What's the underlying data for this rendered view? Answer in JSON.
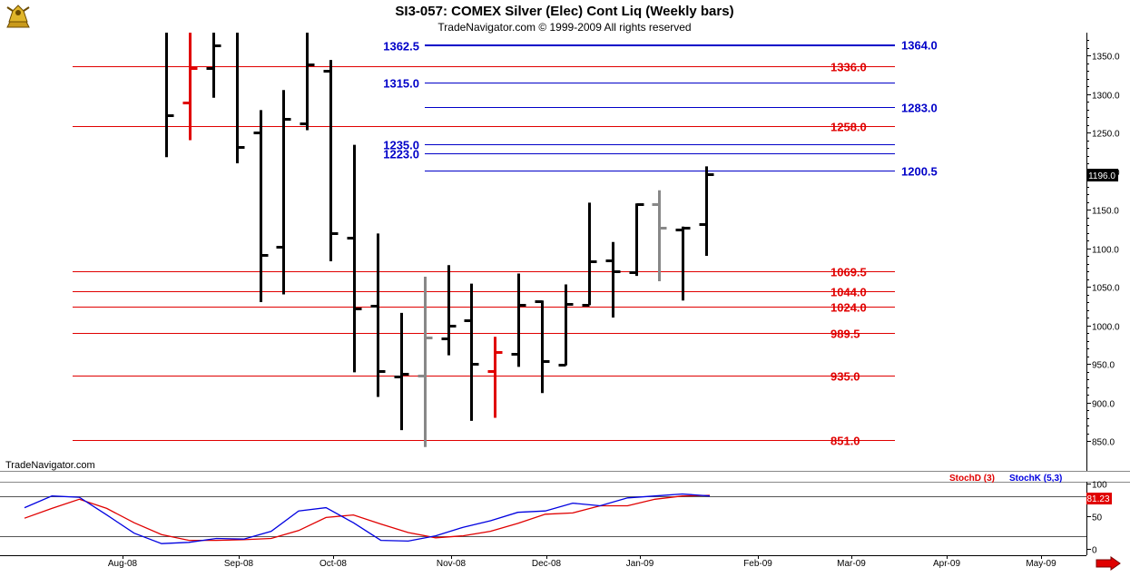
{
  "header": {
    "title": "SI3-057:  COMEX Silver (Elec) Cont Liq  (Weekly bars)",
    "copyright": "TradeNavigator.com © 1999-2009 All rights reserved"
  },
  "brand_label": "TradeNavigator.com",
  "last_price_label": "1196.0",
  "stoch_last_label": "81.23",
  "legend": {
    "stoch_d": "StochD (3)",
    "stoch_k": "StochK (5,3)"
  },
  "icons": {
    "logo": "gold-bull-logo-icon",
    "scroll": "right-arrow-icon"
  },
  "colors": {
    "price_bar": "#000000",
    "down_bar": "#e00000",
    "neutral_bar": "#888888",
    "support_line": "#e00000",
    "resistance_line": "#0000c8",
    "stoch_d": "#e00000",
    "stoch_k": "#0000e0"
  },
  "chart_data": [
    {
      "type": "ohlc",
      "title": "SI3-057:  COMEX Silver (Elec) Cont Liq  (Weekly bars)",
      "x_tick_labels": [
        "Aug-08",
        "Sep-08",
        "Oct-08",
        "Nov-08",
        "Dec-08",
        "Jan-09",
        "Feb-09",
        "Mar-09",
        "Apr-09",
        "May-09"
      ],
      "y_tick_labels": [
        "850.0",
        "900.0",
        "950.0",
        "1000.0",
        "1050.0",
        "1100.0",
        "1150.0",
        "1200.0",
        "1250.0",
        "1300.0",
        "1350.0"
      ],
      "ylim": [
        835,
        1385
      ],
      "grid": false,
      "bars": [
        {
          "week": "2008-07-28",
          "high": 1385,
          "low": 1218,
          "close": 1272,
          "color": "black"
        },
        {
          "week": "2008-08-04",
          "high": 1385,
          "low": 1240,
          "open": 1289,
          "close": 1333,
          "color": "red"
        },
        {
          "week": "2008-08-11",
          "high": 1385,
          "low": 1295,
          "open": 1334,
          "close": 1363,
          "color": "black"
        },
        {
          "week": "2008-08-18",
          "high": 1385,
          "low": 1210,
          "close": 1231,
          "color": "black"
        },
        {
          "week": "2008-08-25",
          "high": 1279,
          "low": 1030,
          "open": 1250,
          "close": 1091,
          "color": "black"
        },
        {
          "week": "2008-09-01",
          "high": 1305,
          "low": 1040,
          "open": 1102,
          "close": 1268,
          "color": "black"
        },
        {
          "week": "2008-09-08",
          "high": 1385,
          "low": 1253,
          "open": 1262,
          "close": 1338,
          "color": "black"
        },
        {
          "week": "2008-09-15",
          "high": 1344,
          "low": 1083,
          "open": 1330,
          "close": 1120,
          "color": "black"
        },
        {
          "week": "2008-09-22",
          "high": 1234,
          "low": 939,
          "open": 1114,
          "close": 1022,
          "color": "black"
        },
        {
          "week": "2008-09-29",
          "high": 1119,
          "low": 907,
          "open": 1025,
          "close": 941,
          "color": "black"
        },
        {
          "week": "2008-10-06",
          "high": 1016,
          "low": 864,
          "open": 933,
          "close": 937,
          "color": "black"
        },
        {
          "week": "2008-10-13",
          "high": 1063,
          "low": 842,
          "open": 935,
          "close": 984,
          "color": "gray"
        },
        {
          "week": "2008-10-20",
          "high": 1078,
          "low": 961,
          "open": 983,
          "close": 1000,
          "color": "black"
        },
        {
          "week": "2008-10-27",
          "high": 1054,
          "low": 876,
          "open": 1006,
          "close": 950,
          "color": "black"
        },
        {
          "week": "2008-11-03",
          "high": 985,
          "low": 880,
          "open": 941,
          "close": 965,
          "color": "red"
        },
        {
          "week": "2008-11-10",
          "high": 1067,
          "low": 946,
          "open": 963,
          "close": 1026,
          "color": "black"
        },
        {
          "week": "2008-11-17",
          "high": 1032,
          "low": 912,
          "open": 1031,
          "close": 954,
          "color": "black"
        },
        {
          "week": "2008-11-24",
          "high": 1053,
          "low": 948,
          "open": 949,
          "close": 1028,
          "color": "black"
        },
        {
          "week": "2008-12-01",
          "high": 1159,
          "low": 1026,
          "open": 1027,
          "close": 1083,
          "color": "black"
        },
        {
          "week": "2008-12-08",
          "high": 1108,
          "low": 1010,
          "open": 1084,
          "close": 1070,
          "color": "black"
        },
        {
          "week": "2008-12-15",
          "high": 1158,
          "low": 1064,
          "open": 1069,
          "close": 1157,
          "color": "black"
        },
        {
          "week": "2008-12-22",
          "high": 1175,
          "low": 1057,
          "open": 1157,
          "close": 1127,
          "color": "gray"
        },
        {
          "week": "2008-12-29",
          "high": 1128,
          "low": 1032,
          "open": 1124,
          "close": 1127,
          "color": "black"
        },
        {
          "week": "2009-01-05",
          "high": 1206,
          "low": 1090,
          "open": 1131,
          "close": 1196,
          "color": "black"
        }
      ],
      "levels": [
        {
          "value": 1364.0,
          "label": "1364.0",
          "side": "right",
          "color": "blue"
        },
        {
          "value": 1362.5,
          "label": "1362.5",
          "side": "left",
          "color": "blue"
        },
        {
          "value": 1336.0,
          "label": "1336.0",
          "side": "right",
          "color": "red"
        },
        {
          "value": 1315.0,
          "label": "1315.0",
          "side": "left",
          "color": "blue"
        },
        {
          "value": 1283.0,
          "label": "1283.0",
          "side": "right",
          "color": "blue"
        },
        {
          "value": 1258.0,
          "label": "1258.0",
          "side": "right",
          "color": "red"
        },
        {
          "value": 1235.0,
          "label": "1235.0",
          "side": "left",
          "color": "blue"
        },
        {
          "value": 1223.0,
          "label": "1223.0",
          "side": "left",
          "color": "blue"
        },
        {
          "value": 1200.5,
          "label": "1200.5",
          "side": "right",
          "color": "blue"
        },
        {
          "value": 1069.5,
          "label": "1069.5",
          "side": "right",
          "color": "red"
        },
        {
          "value": 1044.0,
          "label": "1044.0",
          "side": "right",
          "color": "red"
        },
        {
          "value": 1024.0,
          "label": "1024.0",
          "side": "right",
          "color": "red"
        },
        {
          "value": 989.5,
          "label": "989.5",
          "side": "right",
          "color": "red"
        },
        {
          "value": 935.0,
          "label": "935.0",
          "side": "right",
          "color": "red"
        },
        {
          "value": 851.0,
          "label": "851.0",
          "side": "right",
          "color": "red"
        }
      ],
      "last_price": 1196.0
    },
    {
      "type": "line",
      "y_tick_labels": [
        "0",
        "50",
        "100"
      ],
      "ylim": [
        -5,
        105
      ],
      "reference_lines": [
        80,
        20
      ],
      "grid": false,
      "series": [
        {
          "name": "StochD (3)",
          "values": [
            47,
            62,
            76,
            62,
            40,
            22,
            13,
            13,
            14,
            16,
            28,
            48,
            52,
            38,
            25,
            17,
            20,
            27,
            39,
            53,
            55,
            66,
            66,
            76,
            81,
            82
          ]
        },
        {
          "name": "StochK (5,3)",
          "values": [
            63,
            81,
            79,
            52,
            24,
            8,
            10,
            16,
            15,
            27,
            58,
            63,
            40,
            13,
            12,
            20,
            33,
            43,
            56,
            58,
            70,
            66,
            78,
            81,
            84,
            81
          ]
        }
      ],
      "last_value": 81.23
    }
  ]
}
